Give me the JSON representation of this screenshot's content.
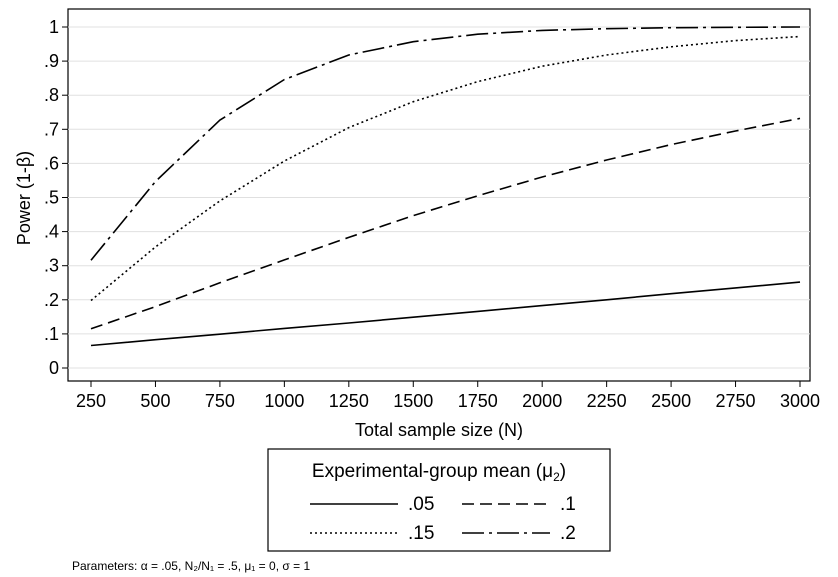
{
  "chart_data": {
    "type": "line",
    "title": "",
    "xlabel": "Total sample size (N)",
    "ylabel": "Power (1-β)",
    "x": [
      250,
      500,
      750,
      1000,
      1250,
      1500,
      1750,
      2000,
      2250,
      2500,
      2750,
      3000
    ],
    "xticks": [
      "250",
      "500",
      "750",
      "1000",
      "1250",
      "1500",
      "1750",
      "2000",
      "2250",
      "2500",
      "2750",
      "3000"
    ],
    "yticks": [
      "0",
      ".1",
      ".2",
      ".3",
      ".4",
      ".5",
      ".6",
      ".7",
      ".8",
      ".9",
      "1"
    ],
    "xlim": [
      250,
      3000
    ],
    "ylim": [
      0,
      1
    ],
    "grid": "horizontal",
    "series": [
      {
        "name": ".05",
        "dash": "solid",
        "values": [
          0.066,
          0.083,
          0.099,
          0.116,
          0.132,
          0.149,
          0.166,
          0.183,
          0.2,
          0.218,
          0.235,
          0.252
        ]
      },
      {
        "name": ".1",
        "dash": "dash",
        "values": [
          0.115,
          0.18,
          0.25,
          0.317,
          0.383,
          0.447,
          0.505,
          0.56,
          0.61,
          0.655,
          0.695,
          0.732
        ]
      },
      {
        "name": ".15",
        "dash": "dot",
        "values": [
          0.198,
          0.355,
          0.49,
          0.607,
          0.705,
          0.781,
          0.84,
          0.885,
          0.918,
          0.942,
          0.96,
          0.972
        ]
      },
      {
        "name": ".2",
        "dash": "longdash-dot",
        "values": [
          0.316,
          0.547,
          0.727,
          0.846,
          0.918,
          0.957,
          0.979,
          0.99,
          0.995,
          0.998,
          0.999,
          1.0
        ]
      }
    ],
    "legend": {
      "title_prefix": "Experimental-group mean (μ",
      "title_sub": "2",
      "title_suffix": ")",
      "placement": "bottom"
    },
    "note": "Parameters: α = .05, N₂/N₁ = .5, μ₁ = 0, σ = 1"
  },
  "colors": {
    "line": "#000000",
    "grid": "#e0e0e0",
    "background": "#ffffff"
  }
}
